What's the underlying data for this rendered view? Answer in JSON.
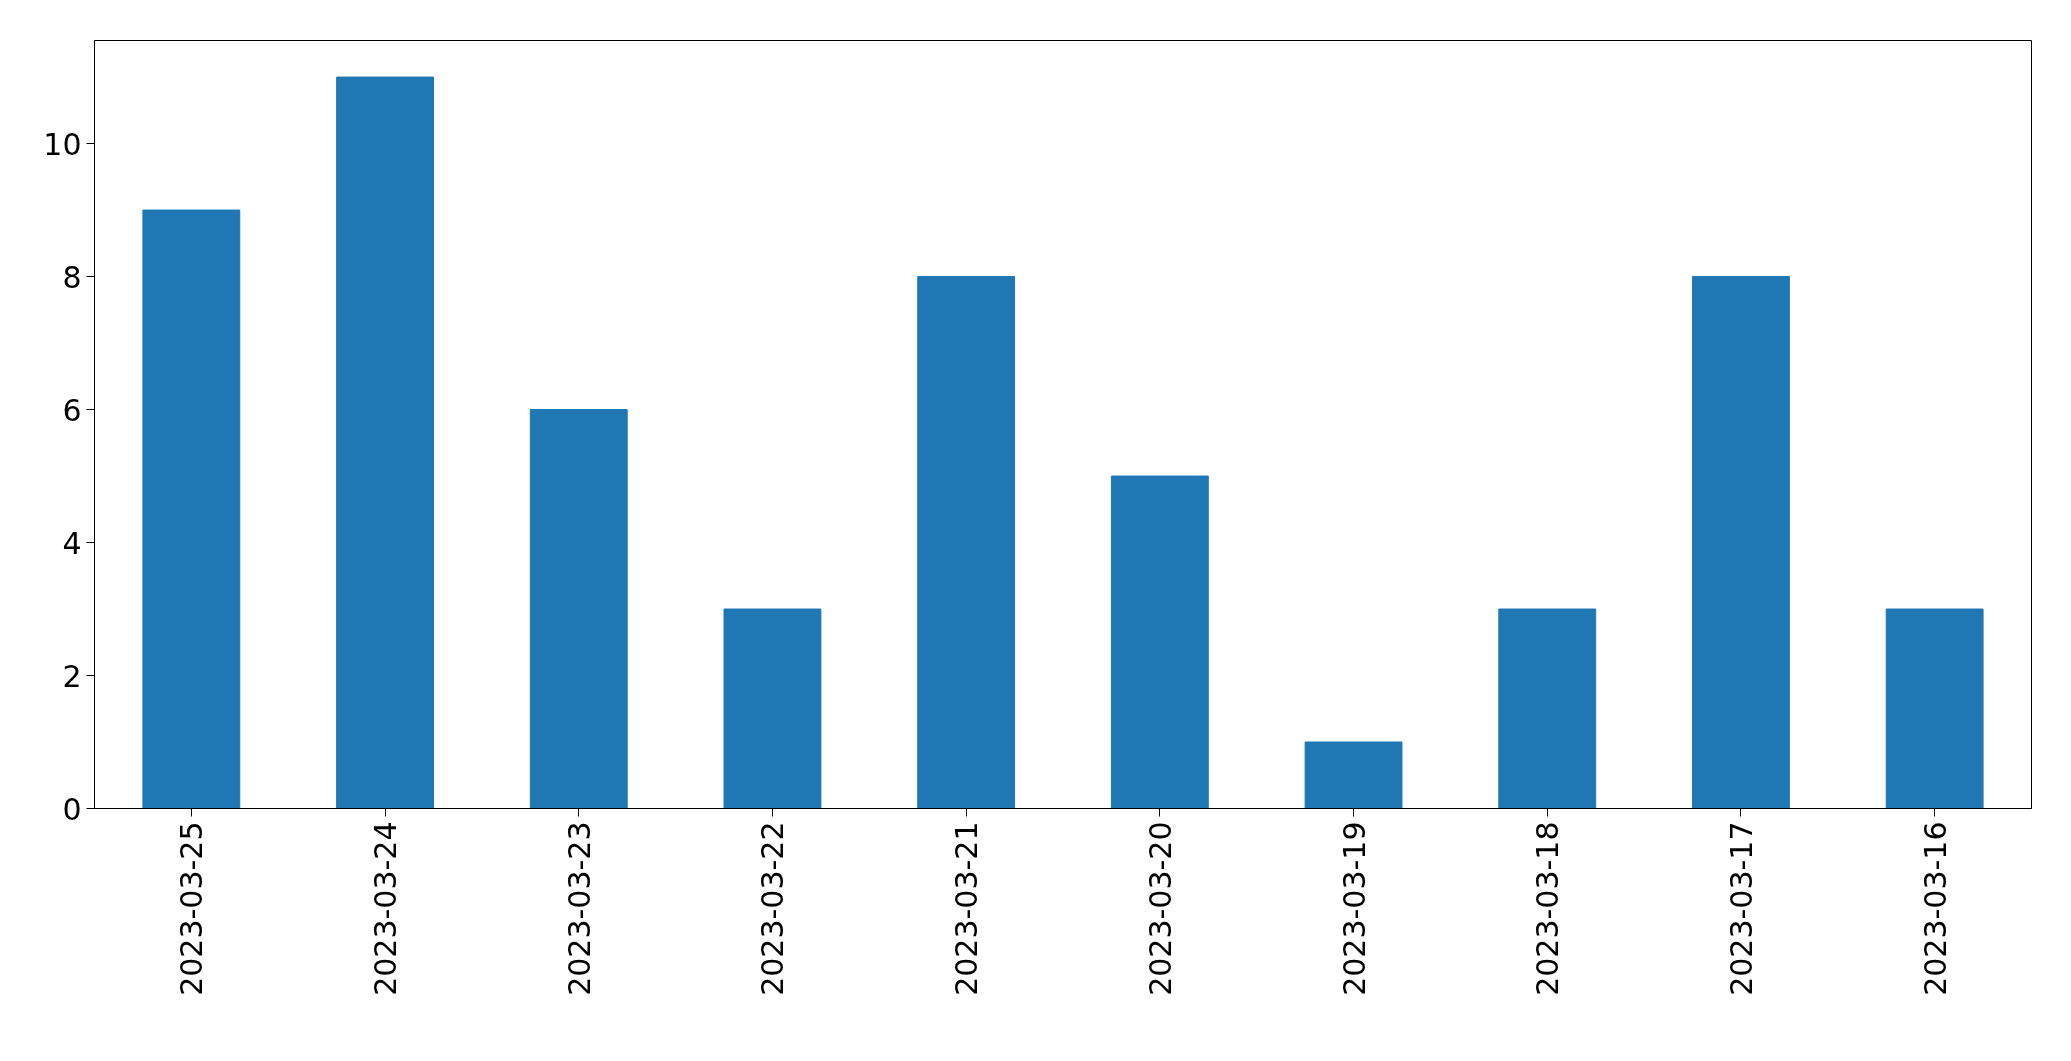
{
  "chart_data": {
    "type": "bar",
    "categories": [
      "2023-03-25",
      "2023-03-24",
      "2023-03-23",
      "2023-03-22",
      "2023-03-21",
      "2023-03-20",
      "2023-03-19",
      "2023-03-18",
      "2023-03-17",
      "2023-03-16"
    ],
    "values": [
      9,
      11,
      6,
      3,
      8,
      5,
      1,
      3,
      8,
      3
    ],
    "color": "#1f77b4",
    "ylim": [
      0,
      11.55
    ],
    "yticks": [
      0,
      2,
      4,
      6,
      8,
      10
    ],
    "grid": false
  }
}
